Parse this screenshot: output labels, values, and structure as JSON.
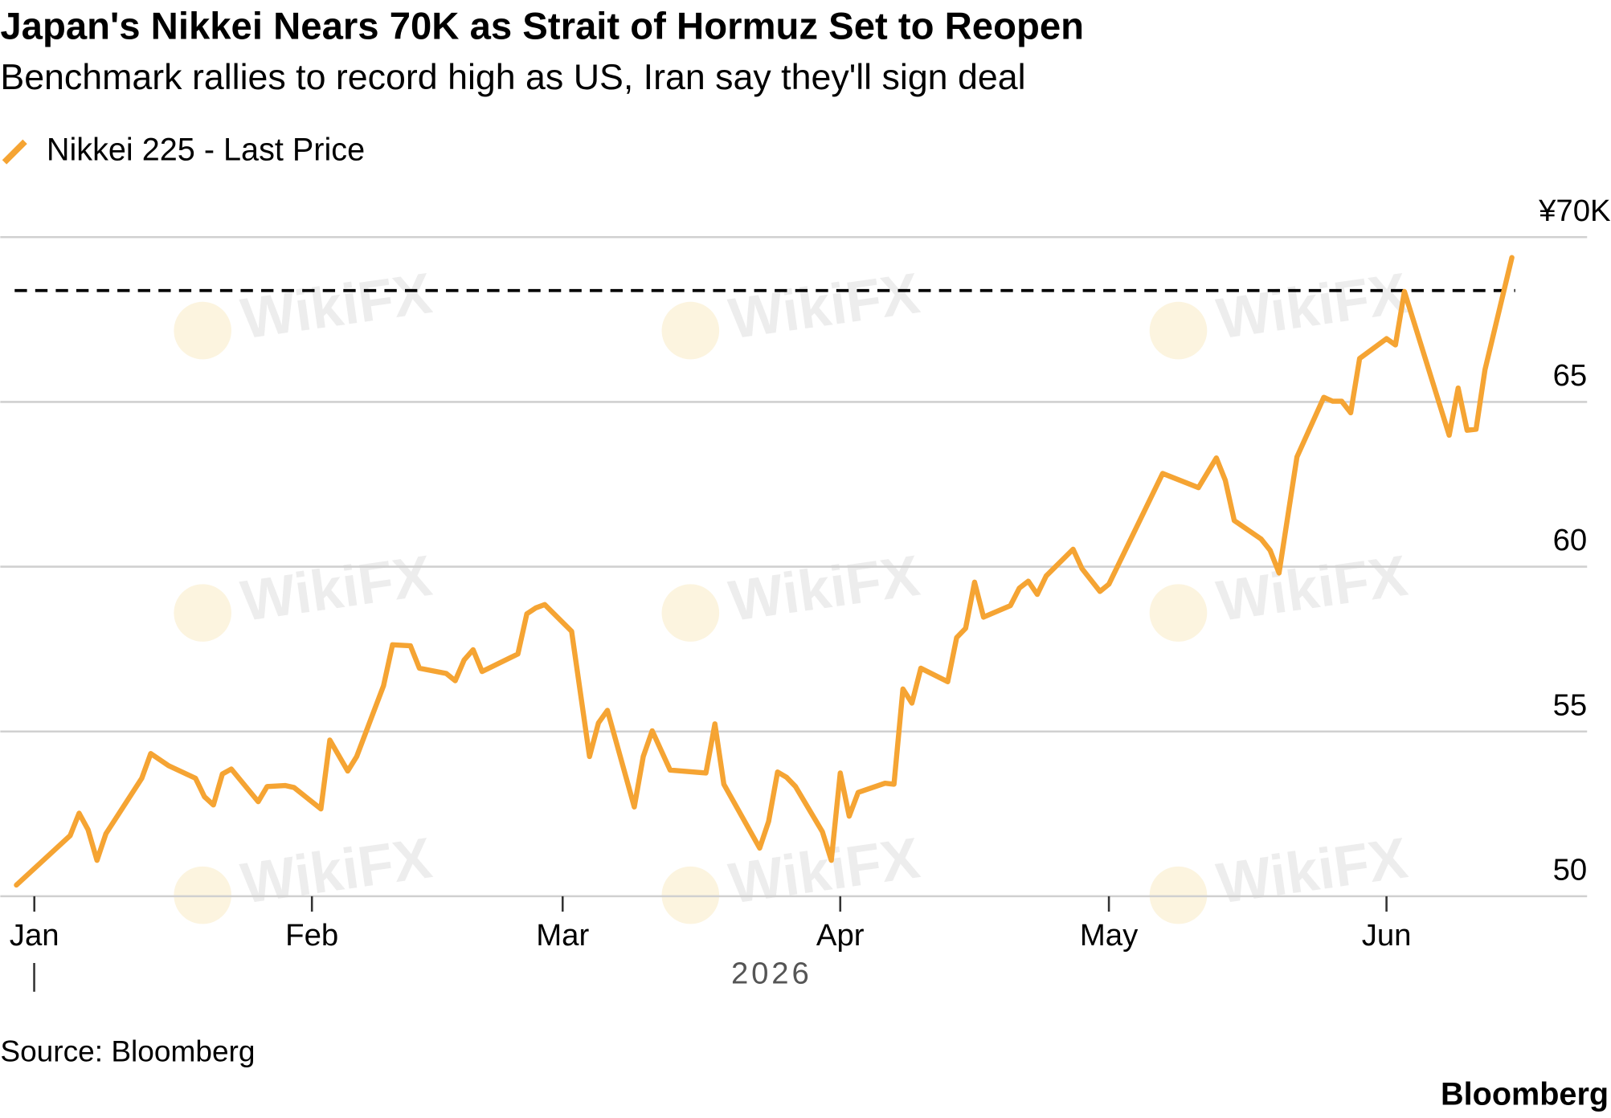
{
  "chart_data": {
    "type": "line",
    "title": "Japan's Nikkei Nears 70K as Strait of Hormuz Set to Reopen",
    "subtitle": "Benchmark rallies to record high as US, Iran say they'll sign deal",
    "xlabel": "2026",
    "source": "Source: Bloomberg",
    "logo": "Bloomberg",
    "watermark": "WikiFX",
    "x": [
      -2,
      4,
      5,
      6,
      7,
      8,
      12,
      13,
      15,
      18,
      19,
      20,
      21,
      22,
      25,
      26,
      28,
      29,
      32,
      33,
      35,
      36,
      39,
      40,
      42,
      43,
      46,
      47,
      48,
      49,
      50,
      54,
      55,
      56,
      57,
      60,
      62,
      63,
      64,
      67,
      68,
      69,
      71,
      75,
      76,
      77,
      81,
      82,
      83,
      84,
      85,
      88,
      89,
      90,
      91,
      92,
      95,
      96,
      97,
      98,
      99,
      102,
      103,
      104,
      105,
      106,
      109,
      110,
      111,
      112,
      113,
      116,
      117,
      119,
      120,
      126,
      130,
      132,
      133,
      134,
      137,
      138,
      139,
      141,
      144,
      145,
      146,
      147,
      148,
      151,
      152,
      153,
      158,
      159,
      160,
      161,
      162,
      165
    ],
    "series": [
      {
        "name": "Nikkei 225 - Last Price",
        "color": "#f5a433",
        "values": [
          50.34,
          51.84,
          52.52,
          52.02,
          51.09,
          51.9,
          53.58,
          54.33,
          53.96,
          53.58,
          53.02,
          52.77,
          53.71,
          53.86,
          52.87,
          53.33,
          53.36,
          53.3,
          52.65,
          54.74,
          53.8,
          54.24,
          56.39,
          57.63,
          57.6,
          56.92,
          56.76,
          56.54,
          57.17,
          57.48,
          56.82,
          57.35,
          58.57,
          58.75,
          58.85,
          58.04,
          54.24,
          55.26,
          55.64,
          52.71,
          54.24,
          55.02,
          53.83,
          53.74,
          55.23,
          53.4,
          51.46,
          52.27,
          53.77,
          53.61,
          53.33,
          51.96,
          51.09,
          53.74,
          52.43,
          53.15,
          53.43,
          53.4,
          56.29,
          55.86,
          56.92,
          56.51,
          57.85,
          58.13,
          59.53,
          58.47,
          58.82,
          59.35,
          59.56,
          59.16,
          59.72,
          60.53,
          59.94,
          59.25,
          59.47,
          62.83,
          62.4,
          63.3,
          62.62,
          61.4,
          60.84,
          60.5,
          59.81,
          63.33,
          65.14,
          65.02,
          65.02,
          64.67,
          66.32,
          66.92,
          66.73,
          68.35,
          63.99,
          65.42,
          64.14,
          64.17,
          65.98,
          69.38
        ]
      }
    ],
    "reference_line": 68.38,
    "xlim": [
      -3.8,
      173.4
    ],
    "xticks": [
      {
        "value": 0,
        "label": "Jan"
      },
      {
        "value": 31,
        "label": "Feb"
      },
      {
        "value": 59,
        "label": "Mar"
      },
      {
        "value": 90,
        "label": "Apr"
      },
      {
        "value": 120,
        "label": "May"
      },
      {
        "value": 151,
        "label": "Jun"
      }
    ],
    "ylim": [
      50,
      70
    ],
    "yticks": [
      50,
      55,
      60,
      65,
      {
        "value": 70,
        "label": "¥70K"
      }
    ],
    "grid": true
  }
}
